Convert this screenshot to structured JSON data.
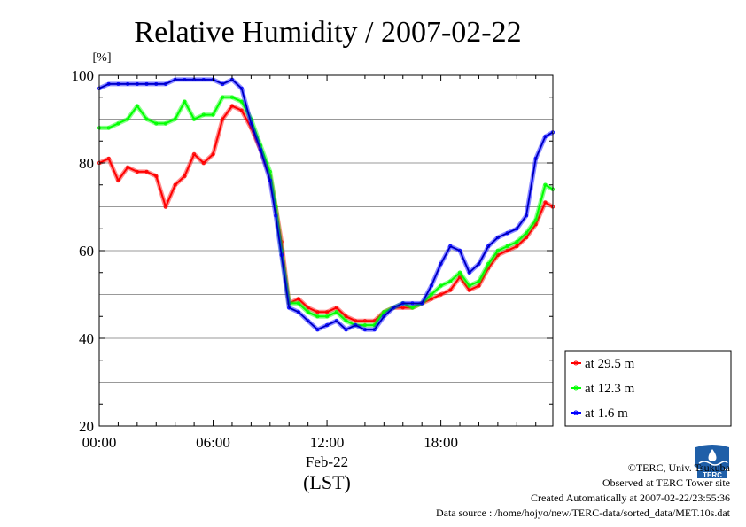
{
  "chart_data": {
    "type": "line",
    "title": "Relative Humidity / 2007-02-22",
    "ylabel": "[%]",
    "xlabel": "(LST)",
    "date_label": "Feb-22",
    "ylim": [
      20,
      100
    ],
    "xlim": [
      0,
      23.9
    ],
    "x_ticks": [
      {
        "value": 0,
        "label": "00:00"
      },
      {
        "value": 6,
        "label": "06:00"
      },
      {
        "value": 12,
        "label": "12:00"
      },
      {
        "value": 18,
        "label": "18:00"
      }
    ],
    "y_ticks": [
      20,
      40,
      60,
      80,
      100
    ],
    "grid_y": [
      30,
      40,
      50,
      60,
      70,
      80,
      90
    ],
    "grid": true,
    "legend_position": "right-bottom",
    "x": [
      0,
      0.5,
      1,
      1.5,
      2,
      2.5,
      3,
      3.5,
      4,
      4.5,
      5,
      5.5,
      6,
      6.5,
      7,
      7.5,
      8,
      8.5,
      9,
      9.3,
      9.6,
      10,
      10.5,
      11,
      11.5,
      12,
      12.5,
      13,
      13.5,
      14,
      14.5,
      15,
      15.5,
      16,
      16.5,
      17,
      17.5,
      18,
      18.5,
      19,
      19.5,
      20,
      20.5,
      21,
      21.5,
      22,
      22.5,
      23,
      23.5,
      23.9
    ],
    "series": [
      {
        "name": "at 29.5 m",
        "color": "#ff0000",
        "values": [
          80,
          81,
          76,
          79,
          78,
          78,
          77,
          70,
          75,
          77,
          82,
          80,
          82,
          90,
          93,
          92,
          88,
          83,
          77,
          70,
          62,
          48,
          49,
          47,
          46,
          46,
          47,
          45,
          44,
          44,
          44,
          46,
          47,
          47,
          47,
          48,
          49,
          50,
          51,
          54,
          51,
          52,
          56,
          59,
          60,
          61,
          63,
          66,
          71,
          70
        ]
      },
      {
        "name": "at 12.3 m",
        "color": "#00ff00",
        "values": [
          88,
          88,
          89,
          90,
          93,
          90,
          89,
          89,
          90,
          94,
          90,
          91,
          91,
          95,
          95,
          94,
          90,
          84,
          78,
          70,
          60,
          48,
          48,
          46,
          45,
          45,
          46,
          44,
          43,
          43,
          43,
          46,
          47,
          48,
          47,
          48,
          50,
          52,
          53,
          55,
          52,
          53,
          57,
          60,
          61,
          62,
          64,
          67,
          75,
          74
        ]
      },
      {
        "name": "at 1.6 m",
        "color": "#0000ff",
        "values": [
          97,
          98,
          98,
          98,
          98,
          98,
          98,
          98,
          99,
          99,
          99,
          99,
          99,
          98,
          99,
          97,
          89,
          83,
          76,
          68,
          59,
          47,
          46,
          44,
          42,
          43,
          44,
          42,
          43,
          42,
          42,
          45,
          47,
          48,
          48,
          48,
          52,
          57,
          61,
          60,
          55,
          57,
          61,
          63,
          64,
          65,
          68,
          81,
          86,
          87
        ]
      }
    ]
  },
  "credits": {
    "copyright": "©TERC, Univ. Tsukuba",
    "observed": "Observed at TERC Tower site",
    "created": "Created Automatically at 2007-02-22/23:55:36",
    "source": "Data source : /home/hojyo/new/TERC-data/sorted_data/MET.10s.dat",
    "logo_text": "TERC"
  }
}
